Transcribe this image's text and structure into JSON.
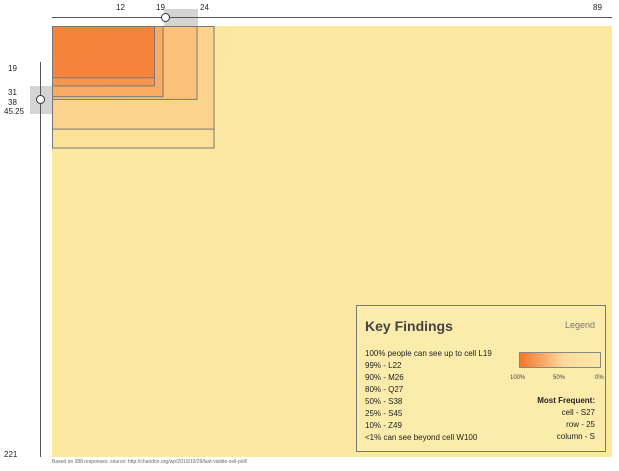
{
  "chart_data": {
    "type": "heatmap",
    "x_ticks": [
      "12",
      "19",
      "24",
      "89"
    ],
    "y_ticks": [
      "19",
      "31",
      "38",
      "45.25",
      "221"
    ],
    "x_range": [
      1,
      89
    ],
    "y_range": [
      1,
      221
    ],
    "selected_x": 19,
    "selected_y": 31,
    "visibility_boxes": [
      {
        "label": "100%",
        "column": 12,
        "row": 19
      },
      {
        "label": "99%",
        "column": 12,
        "row": 22
      },
      {
        "label": "90%",
        "column": 13,
        "row": 26
      },
      {
        "label": "80%",
        "column": 17,
        "row": 27
      },
      {
        "label": "50%",
        "column": 19,
        "row": 38
      },
      {
        "label": "25%",
        "column": 19,
        "row": 45
      }
    ],
    "colors": {
      "high": "#f5772d",
      "mid": "#fdd9a0",
      "low": "#fce8a0",
      "box": "#777777"
    }
  },
  "key_findings": {
    "title": "Key Findings",
    "legend_title": "Legend",
    "lines": [
      "100% people can see up to cell L19",
      "99% - L22",
      "90% - M26",
      "80% - Q27",
      "50% - S38",
      "25% - S45",
      "10% - Z49",
      "<1%  can see beyond cell W100"
    ],
    "legend_ticks": [
      "100%",
      "50%",
      "0%"
    ],
    "most_frequent_title": "Most Frequent:",
    "most_frequent": [
      "cell -  S27",
      "row - 25",
      "column - S"
    ]
  },
  "footnote": "Based on 288 responses. source: http://chandoo.org/wp/2010/10/29/last-visible-cell-poll/"
}
